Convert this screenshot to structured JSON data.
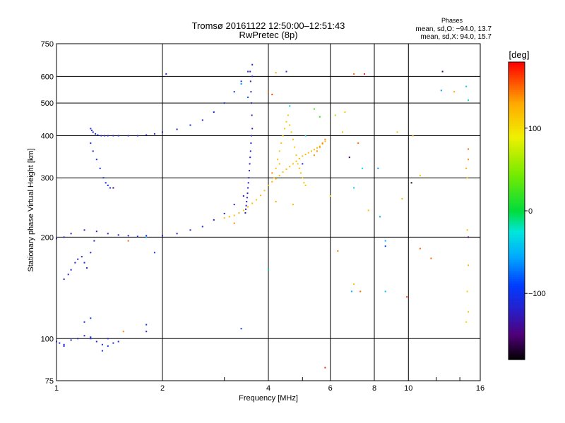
{
  "chart_data": {
    "type": "scatter",
    "title": "Tromsø 20161122 12:50:00–12:51:43",
    "subtitle": "RwPretec (8p)",
    "xlabel": "Frequency [MHz]",
    "ylabel": "Stationary phase Virtual Height [km]",
    "x_scale": "log",
    "y_scale": "log",
    "xlim": [
      1,
      16
    ],
    "ylim": [
      75,
      750
    ],
    "grid": true,
    "x_ticks": [
      1,
      2,
      4,
      6,
      8,
      10,
      16
    ],
    "x_tick_labels": [
      "1",
      "2",
      "4",
      "6",
      "8",
      "10",
      "16"
    ],
    "x_minor": [
      3,
      5,
      12,
      14
    ],
    "y_ticks": [
      75,
      100,
      200,
      300,
      400,
      500,
      600,
      750
    ],
    "y_tick_labels": [
      "75",
      "100",
      "200",
      "300",
      "400",
      "500",
      "600",
      "750"
    ],
    "phases": {
      "heading": "Phases",
      "line_o": "mean, sd,O: −94.0, 13.7",
      "line_x": "mean, sd,X:  94.0, 15.7"
    },
    "colorbar": {
      "label": "[deg]",
      "range": [
        -180,
        180
      ],
      "ticks": [
        100,
        0,
        -100
      ],
      "tick_labels": [
        "100",
        "0",
        "−100"
      ]
    },
    "traces": [
      {
        "x": [
          1.0,
          1.05,
          1.1,
          1.2,
          1.3,
          1.4,
          1.5,
          1.6,
          1.7,
          1.8,
          2.0,
          2.2,
          2.4,
          2.6,
          2.8,
          3.0,
          3.2,
          3.4
        ],
        "y": [
          198,
          200,
          205,
          210,
          208,
          205,
          203,
          202,
          201,
          202,
          202,
          205,
          210,
          215,
          225,
          235,
          250,
          265
        ],
        "phase": -115
      },
      {
        "x": [
          1.25,
          1.26,
          1.27,
          1.29,
          1.31,
          1.34,
          1.37,
          1.4,
          1.45,
          1.5,
          1.6,
          1.7,
          1.8,
          1.9,
          2.0,
          2.2,
          2.4,
          2.6,
          2.8,
          3.0,
          3.2,
          3.35,
          3.5,
          3.6,
          3.6
        ],
        "y": [
          420,
          415,
          410,
          405,
          402,
          400,
          400,
          400,
          400,
          400,
          400,
          400,
          402,
          405,
          410,
          418,
          430,
          445,
          470,
          500,
          540,
          580,
          620,
          650,
          600
        ],
        "phase": -110
      },
      {
        "x": [
          3.55,
          3.56,
          3.57,
          3.58,
          3.59,
          3.6,
          3.58,
          3.57,
          3.56,
          3.55,
          3.54,
          3.53,
          3.52,
          3.51,
          3.5,
          3.49,
          3.48,
          3.47,
          3.46,
          3.45,
          3.44
        ],
        "y": [
          620,
          580,
          540,
          500,
          460,
          420,
          400,
          380,
          360,
          345,
          330,
          315,
          300,
          290,
          280,
          270,
          262,
          255,
          248,
          242,
          236
        ],
        "phase": -118
      },
      {
        "x": [
          1.25,
          1.27,
          1.3,
          1.33,
          1.36,
          1.38,
          1.4,
          1.42
        ],
        "y": [
          380,
          360,
          340,
          320,
          300,
          290,
          285,
          280
        ],
        "phase": -108
      },
      {
        "x": [
          1.05,
          1.08,
          1.1,
          1.13,
          1.15,
          1.18,
          1.2,
          1.22,
          1.25,
          1.28
        ],
        "y": [
          150,
          155,
          160,
          168,
          172,
          175,
          168,
          162,
          180,
          195
        ],
        "phase": -112
      },
      {
        "x": [
          1.0,
          1.02,
          1.05,
          1.1,
          1.15,
          1.2,
          1.25,
          1.3,
          1.35,
          1.4,
          1.45,
          1.5
        ],
        "y": [
          98,
          97,
          96,
          99,
          100,
          102,
          101,
          98,
          96,
          95,
          97,
          98
        ],
        "phase": -112
      },
      {
        "x": [
          3.0,
          3.1,
          3.2,
          3.3,
          3.4,
          3.5,
          3.6,
          3.7,
          3.8,
          3.9,
          4.0,
          4.1,
          4.2,
          4.3,
          4.4,
          4.5,
          4.6,
          4.7,
          4.8,
          4.9,
          5.0,
          5.1,
          5.2,
          5.3,
          5.4,
          5.5,
          5.6,
          5.7,
          5.8
        ],
        "y": [
          228,
          230,
          232,
          236,
          240,
          246,
          252,
          258,
          266,
          275,
          285,
          292,
          298,
          305,
          312,
          318,
          324,
          330,
          336,
          342,
          348,
          352,
          356,
          360,
          364,
          368,
          372,
          378,
          385
        ],
        "phase": 120
      },
      {
        "x": [
          4.15,
          4.2,
          4.25,
          4.3,
          4.35,
          4.4,
          4.45,
          4.5,
          4.55,
          4.6,
          4.65,
          4.7,
          4.75,
          4.8,
          4.85,
          4.9,
          4.95,
          5.0,
          5.05,
          5.1
        ],
        "y": [
          300,
          320,
          340,
          360,
          380,
          400,
          420,
          440,
          460,
          430,
          410,
          390,
          370,
          350,
          330,
          320,
          310,
          300,
          290,
          285
        ],
        "phase": 115
      },
      {
        "x": [
          5.4,
          5.5,
          5.6,
          5.7,
          5.8
        ],
        "y": [
          350,
          360,
          370,
          380,
          390
        ],
        "phase": 140
      }
    ],
    "points": [
      {
        "x": 2.05,
        "y": 610,
        "phase": -110
      },
      {
        "x": 4.5,
        "y": 620,
        "phase": -105
      },
      {
        "x": 4.2,
        "y": 615,
        "phase": 130
      },
      {
        "x": 4.0,
        "y": 540,
        "phase": 150
      },
      {
        "x": 4.1,
        "y": 530,
        "phase": 160
      },
      {
        "x": 5.4,
        "y": 480,
        "phase": 30
      },
      {
        "x": 5.6,
        "y": 455,
        "phase": 20
      },
      {
        "x": 6.2,
        "y": 460,
        "phase": 60
      },
      {
        "x": 6.6,
        "y": 470,
        "phase": 110
      },
      {
        "x": 7.0,
        "y": 610,
        "phase": 150
      },
      {
        "x": 7.5,
        "y": 610,
        "phase": 170
      },
      {
        "x": 7.2,
        "y": 380,
        "phase": 150
      },
      {
        "x": 6.5,
        "y": 410,
        "phase": 120
      },
      {
        "x": 6.8,
        "y": 345,
        "phase": -160
      },
      {
        "x": 7.4,
        "y": 320,
        "phase": -30
      },
      {
        "x": 8.2,
        "y": 320,
        "phase": -60
      },
      {
        "x": 9.3,
        "y": 410,
        "phase": 120
      },
      {
        "x": 10.3,
        "y": 400,
        "phase": 130
      },
      {
        "x": 12.5,
        "y": 620,
        "phase": -160
      },
      {
        "x": 12.4,
        "y": 545,
        "phase": -60
      },
      {
        "x": 13.5,
        "y": 540,
        "phase": 130
      },
      {
        "x": 14.6,
        "y": 560,
        "phase": -40
      },
      {
        "x": 14.8,
        "y": 510,
        "phase": -20
      },
      {
        "x": 14.8,
        "y": 365,
        "phase": 150
      },
      {
        "x": 14.8,
        "y": 340,
        "phase": 140
      },
      {
        "x": 14.6,
        "y": 320,
        "phase": 130
      },
      {
        "x": 14.7,
        "y": 300,
        "phase": 120
      },
      {
        "x": 10.2,
        "y": 290,
        "phase": -170
      },
      {
        "x": 10.8,
        "y": 305,
        "phase": 120
      },
      {
        "x": 7.0,
        "y": 280,
        "phase": -40
      },
      {
        "x": 6.0,
        "y": 265,
        "phase": 100
      },
      {
        "x": 7.7,
        "y": 240,
        "phase": 120
      },
      {
        "x": 8.3,
        "y": 230,
        "phase": -50
      },
      {
        "x": 9.6,
        "y": 260,
        "phase": 120
      },
      {
        "x": 8.6,
        "y": 195,
        "phase": -50
      },
      {
        "x": 8.6,
        "y": 188,
        "phase": -90
      },
      {
        "x": 6.3,
        "y": 182,
        "phase": 140
      },
      {
        "x": 10.8,
        "y": 185,
        "phase": 150
      },
      {
        "x": 11.6,
        "y": 173,
        "phase": 150
      },
      {
        "x": 14.8,
        "y": 165,
        "phase": 120
      },
      {
        "x": 14.7,
        "y": 210,
        "phase": 120
      },
      {
        "x": 14.8,
        "y": 200,
        "phase": -150
      },
      {
        "x": 7.0,
        "y": 145,
        "phase": 120
      },
      {
        "x": 6.9,
        "y": 138,
        "phase": -50
      },
      {
        "x": 7.3,
        "y": 138,
        "phase": 150
      },
      {
        "x": 8.6,
        "y": 138,
        "phase": -40
      },
      {
        "x": 9.9,
        "y": 133,
        "phase": 160
      },
      {
        "x": 14.7,
        "y": 138,
        "phase": 110
      },
      {
        "x": 14.8,
        "y": 120,
        "phase": 120
      },
      {
        "x": 14.6,
        "y": 112,
        "phase": 110
      },
      {
        "x": 5.8,
        "y": 82,
        "phase": 170
      },
      {
        "x": 4.0,
        "y": 160,
        "phase": -10
      },
      {
        "x": 4.1,
        "y": 310,
        "phase": 140
      },
      {
        "x": 4.3,
        "y": 330,
        "phase": 125
      },
      {
        "x": 1.8,
        "y": 110,
        "phase": -100
      },
      {
        "x": 1.8,
        "y": 105,
        "phase": -110
      },
      {
        "x": 1.8,
        "y": 200,
        "phase": -50
      },
      {
        "x": 1.6,
        "y": 195,
        "phase": 150
      },
      {
        "x": 1.45,
        "y": 280,
        "phase": -150
      },
      {
        "x": 1.9,
        "y": 180,
        "phase": -100
      },
      {
        "x": 3.35,
        "y": 107,
        "phase": -90
      },
      {
        "x": 1.55,
        "y": 105,
        "phase": 140
      },
      {
        "x": 1.4,
        "y": 100,
        "phase": -100
      },
      {
        "x": 1.35,
        "y": 92,
        "phase": -110
      },
      {
        "x": 1.25,
        "y": 100,
        "phase": -90
      },
      {
        "x": 1.05,
        "y": 95,
        "phase": -110
      },
      {
        "x": 1.2,
        "y": 112,
        "phase": -110
      },
      {
        "x": 1.25,
        "y": 115,
        "phase": -100
      },
      {
        "x": 3.35,
        "y": 570,
        "phase": -60
      },
      {
        "x": 3.5,
        "y": 520,
        "phase": -80
      },
      {
        "x": 4.6,
        "y": 490,
        "phase": -40
      },
      {
        "x": 5.1,
        "y": 400,
        "phase": -40
      },
      {
        "x": 5.0,
        "y": 330,
        "phase": -120
      },
      {
        "x": 4.7,
        "y": 250,
        "phase": 120
      },
      {
        "x": 4.2,
        "y": 255,
        "phase": 130
      },
      {
        "x": 3.2,
        "y": 220,
        "phase": 140
      }
    ]
  }
}
